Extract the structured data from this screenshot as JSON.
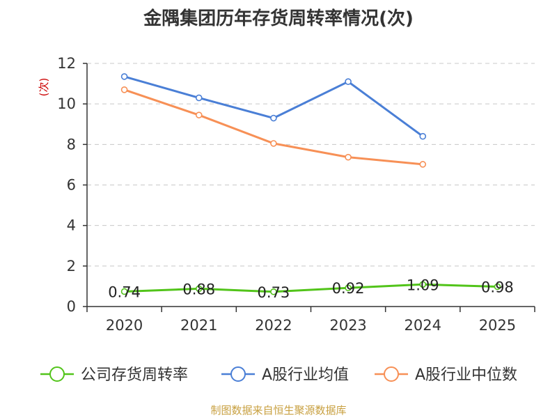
{
  "chart_data": {
    "type": "line",
    "title": "金隅集团历年存货周转率情况(次)",
    "ylabel": "(次)",
    "ylim": [
      0,
      12
    ],
    "yticks": [
      0,
      2,
      4,
      6,
      8,
      10,
      12
    ],
    "categories": [
      "2020",
      "2021",
      "2022",
      "2023",
      "2024",
      "2025"
    ],
    "grid": true,
    "legend_position": "bottom",
    "series": [
      {
        "name": "公司存货周转率",
        "color": "#52c41a",
        "values": [
          0.74,
          0.88,
          0.73,
          0.92,
          1.09,
          0.98
        ],
        "labels": [
          "0.74",
          "0.88",
          "0.73",
          "0.92",
          "1.09",
          "0.98"
        ]
      },
      {
        "name": "A股行业均值",
        "color": "#4a7fd6",
        "values": [
          11.35,
          10.3,
          9.3,
          11.1,
          8.4,
          null
        ]
      },
      {
        "name": "A股行业中位数",
        "color": "#f79056",
        "values": [
          10.7,
          9.45,
          8.05,
          7.37,
          7.02,
          null
        ]
      }
    ],
    "source": "制图数据来自恒生聚源数据库"
  }
}
